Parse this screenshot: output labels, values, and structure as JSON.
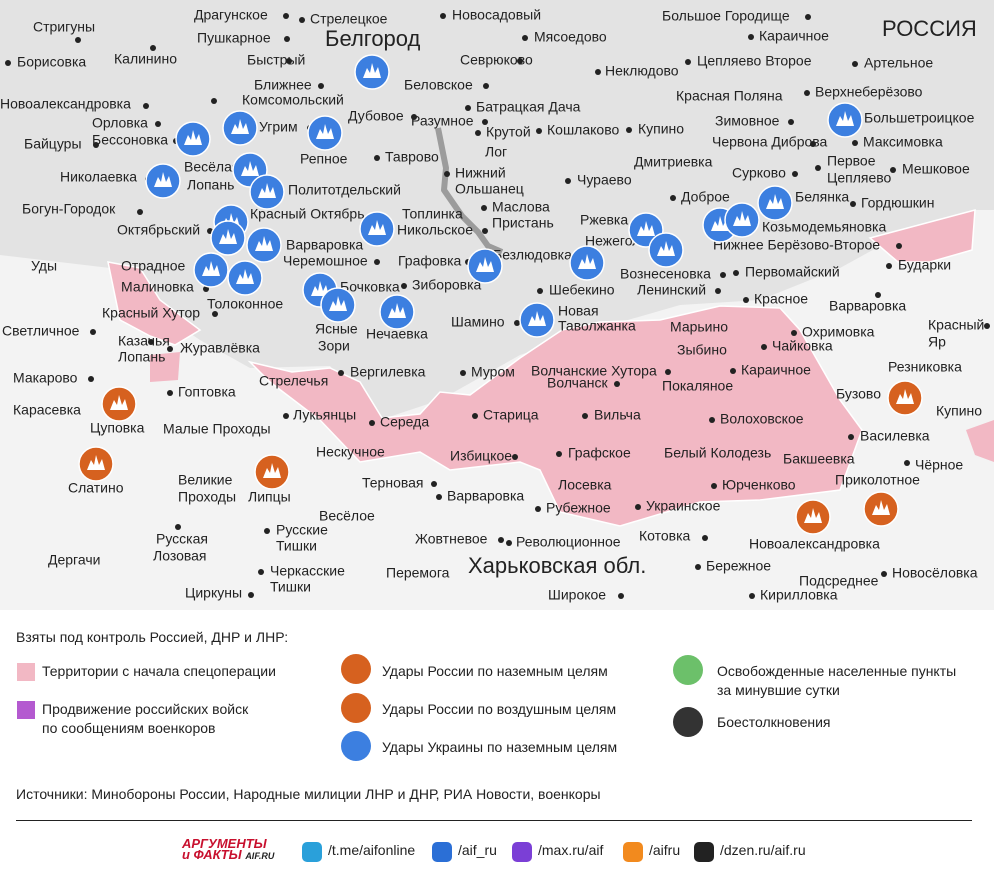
{
  "map": {
    "country": "РОССИЯ",
    "city": "Белгород",
    "region": "Харьковская обл.",
    "places": [
      "Драгунское",
      "Стрелецкое",
      "Новосадовый",
      "Большое Городище",
      "Стригуны",
      "Пушкарное",
      "Мясоедово",
      "Караичное",
      "Калинино",
      "Быстрый",
      "Севрюково",
      "Борисовка",
      "Неклюдово",
      "Цепляево Второе",
      "Артельное",
      "Ближнее",
      "Комсомольский",
      "Беловское",
      "Красная Поляна",
      "Верхнеберёзово",
      "Новоалександровка",
      "Батрацкая Дача",
      "Орловка",
      "Угрим",
      "Дубовое",
      "Разумное",
      "Крутой",
      "Кошлаково",
      "Купино",
      "Зимовное",
      "Большетроицкое",
      "Байцуры",
      "Бессоновка",
      "Червона Диброва",
      "Максимовка",
      "Репное",
      "Таврово",
      "Лог",
      "Весёлая",
      "Лопань",
      "Николаевка",
      "Дмитриевка",
      "Сурково",
      "Первое",
      "Цепляево",
      "Мешковое",
      "Нижний",
      "Ольшанец",
      "Чураево",
      "Политотдельский",
      "Доброе",
      "Белянка",
      "Гордюшкин",
      "Богун-Городок",
      "Маслова",
      "Пристань",
      "Красный Октябрь",
      "Топлинка",
      "Ржевка",
      "Октябрьский",
      "Никольское",
      "Козьмодемьяновка",
      "Нежеголь",
      "Варваровка",
      "Безлюдовка",
      "Нижнее Берёзово-Второе",
      "Графовка",
      "Бударки",
      "Уды",
      "Отрадное",
      "Черемошное",
      "Вознесеновка",
      "Первомайский",
      "Малиновка",
      "Бочковка",
      "Зиборовка",
      "Шебекино",
      "Ленинский",
      "Варваровка",
      "Красное",
      "Толоконное",
      "Ясные",
      "Зори",
      "Красный Хутор",
      "Шамино",
      "Новая",
      "Таволжанка",
      "Марьино",
      "Охримовка",
      "Красный",
      "Яр",
      "Светличное",
      "Казачья",
      "Лопань",
      "Нечаевка",
      "Чайковка",
      "Журавлёвка",
      "Зыбино",
      "Резниковка",
      "Вергилевка",
      "Муром",
      "Волчанские Хутора",
      "Караичное",
      "Макарово",
      "Стрелечья",
      "Волчанск",
      "Покаляное",
      "Гоптовка",
      "Бузово",
      "Карасевка",
      "Купино",
      "Лукьянцы",
      "Старица",
      "Вильча",
      "Волоховское",
      "Середа",
      "Цуповка",
      "Малые Проходы",
      "Василевка",
      "Нескучное",
      "Избицкое",
      "Графское",
      "Белый Колодезь",
      "Бакшеевка",
      "Чёрное",
      "Слатино",
      "Великие",
      "Проходы",
      "Липцы",
      "Терновая",
      "Приколотное",
      "Юрченково",
      "Лосевка",
      "Варваровка",
      "Рубежное",
      "Украинское",
      "Весёлое",
      "Русские",
      "Тишки",
      "Котовка",
      "Жовтневое",
      "Революционное",
      "Новоалександровка",
      "Русская",
      "Лозовая",
      "Дергачи",
      "Бережное",
      "Черкасские",
      "Тишки",
      "Перемога",
      "Подсреднее",
      "Новосёловка",
      "Циркуны",
      "Широкое",
      "Кирилловка"
    ]
  },
  "legend": {
    "title": "Взяты под контроль Россией, ДНР и ЛНР:",
    "items": [
      {
        "lines": [
          "Территории с начала спецоперации"
        ]
      },
      {
        "lines": [
          "Продвижение российских войск",
          "по сообщениям военкоров"
        ]
      },
      {
        "lines": [
          "Удары России по наземным целям"
        ]
      },
      {
        "lines": [
          "Удары России по воздушным целям"
        ]
      },
      {
        "lines": [
          "Удары Украины по наземным целям"
        ]
      },
      {
        "lines": [
          "Освобожденные населенные пункты",
          "за минувшие сутки"
        ]
      },
      {
        "lines": [
          "Боестолкновения"
        ]
      }
    ]
  },
  "sources": "Источники: Минобороны России, Народные милиции ЛНР и ДНР, РИА Новости, военкоры",
  "footer": {
    "logo": [
      "АРГУМЕНТЫ",
      "и ФАКТЫ",
      "AIF.RU"
    ],
    "links": [
      "/t.me/aifonline",
      "/aif_ru",
      "/max.ru/aif",
      "/aifru",
      "/dzen.ru/aif.ru"
    ]
  }
}
